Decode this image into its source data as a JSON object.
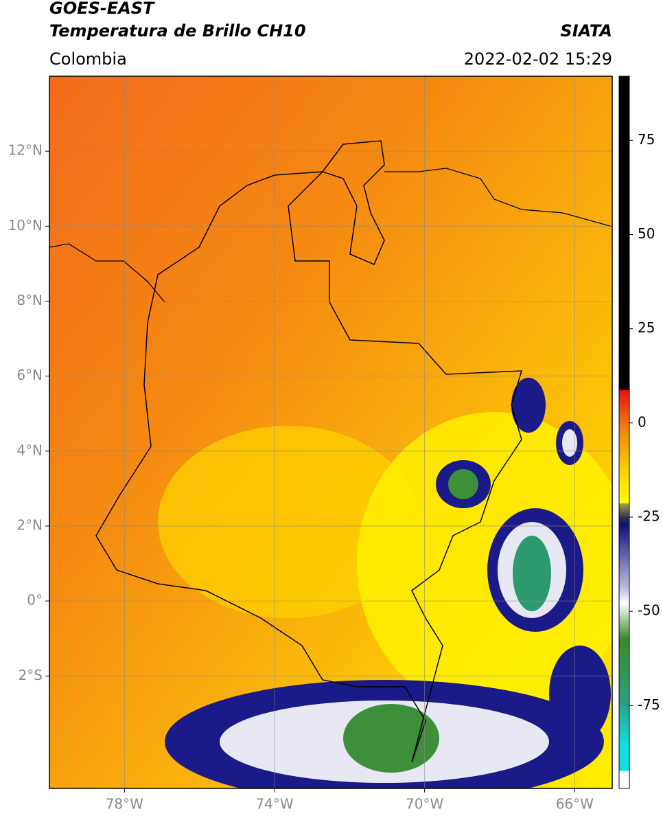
{
  "header": {
    "satellite": "GOES-EAST",
    "product": "Temperatura de Brillo CH10",
    "agency": "SIATA",
    "region": "Colombia",
    "timestamp": "2022-02-02 15:29"
  },
  "map": {
    "xlim": [
      -80,
      -65
    ],
    "ylim": [
      -5,
      14
    ],
    "xticks": [
      {
        "value": -78,
        "label": "78°W"
      },
      {
        "value": -74,
        "label": "74°W"
      },
      {
        "value": -70,
        "label": "70°W"
      },
      {
        "value": -66,
        "label": "66°W"
      }
    ],
    "yticks": [
      {
        "value": 12,
        "label": "12°N"
      },
      {
        "value": 10,
        "label": "10°N"
      },
      {
        "value": 8,
        "label": "8°N"
      },
      {
        "value": 6,
        "label": "6°N"
      },
      {
        "value": 4,
        "label": "4°N"
      },
      {
        "value": 2,
        "label": "2°N"
      },
      {
        "value": 0,
        "label": "0°"
      },
      {
        "value": -2,
        "label": "2°S"
      }
    ],
    "grid": true
  },
  "colorbar": {
    "lim": [
      -97,
      92
    ],
    "ticks": [
      75,
      50,
      25,
      0,
      -25,
      -50,
      -75
    ]
  }
}
